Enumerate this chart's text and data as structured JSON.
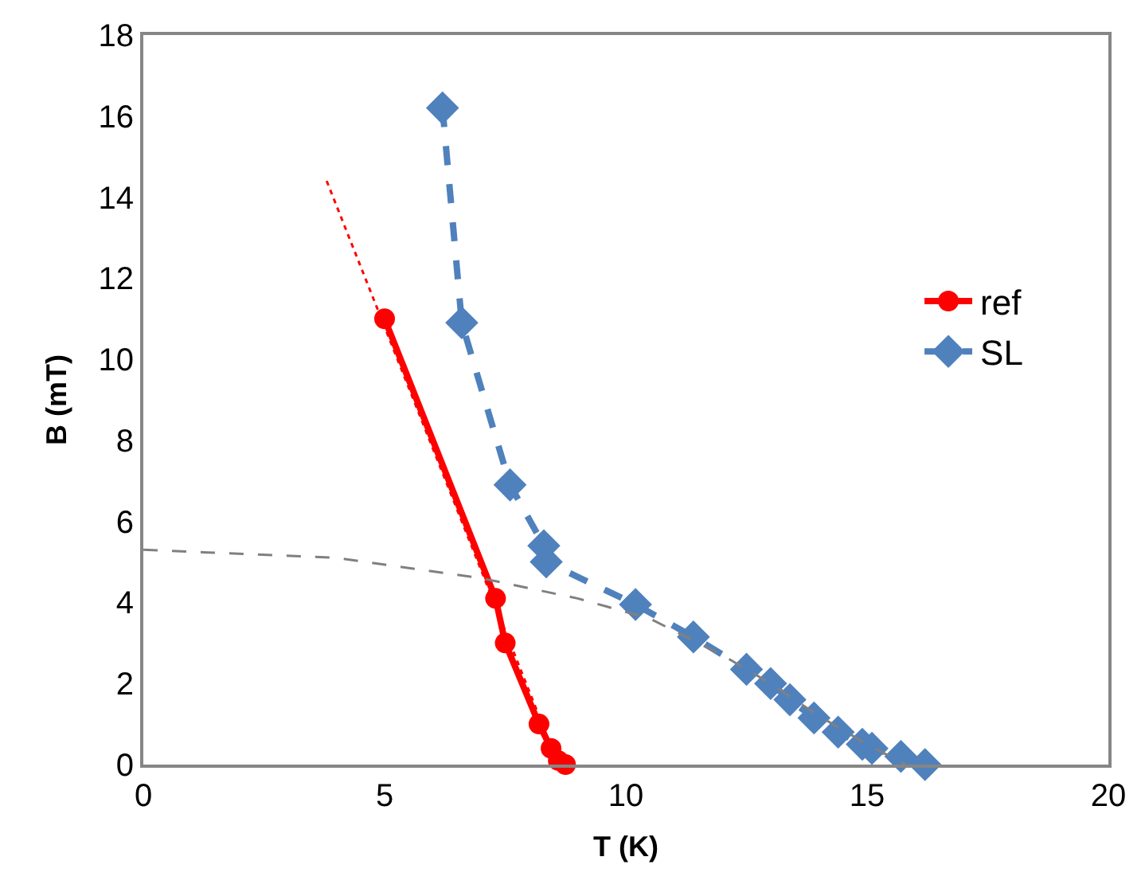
{
  "chart_data": {
    "type": "line",
    "xlabel": "T (K)",
    "ylabel": "B (mT)",
    "xlim": [
      0,
      20
    ],
    "xticks": [
      0,
      5,
      10,
      15,
      20
    ],
    "ylim": [
      0,
      18
    ],
    "yticks": [
      0,
      2,
      4,
      6,
      8,
      10,
      12,
      14,
      16,
      18
    ],
    "legend": "right",
    "series": [
      {
        "name": "ref",
        "color": "#ff0000",
        "marker": "circle",
        "line_style": "solid",
        "x": [
          5.0,
          7.3,
          7.5,
          8.2,
          8.45,
          8.6,
          8.75
        ],
        "values": [
          11.0,
          4.1,
          3.0,
          1.0,
          0.4,
          0.1,
          0.0
        ]
      },
      {
        "name": "SL",
        "color": "#4f81bd",
        "marker": "diamond",
        "line_style": "dashed",
        "x": [
          6.2,
          6.6,
          7.6,
          8.3,
          8.35,
          10.2,
          11.4,
          12.5,
          13.0,
          13.4,
          13.9,
          14.4,
          14.9,
          15.1,
          15.7,
          16.2
        ],
        "values": [
          16.2,
          10.9,
          6.9,
          5.4,
          5.0,
          3.95,
          3.15,
          2.35,
          2.0,
          1.6,
          1.15,
          0.8,
          0.5,
          0.4,
          0.2,
          0.0
        ]
      },
      {
        "color": "#ff0000",
        "marker": "none",
        "line_style": "dotted",
        "x": [
          3.8,
          8.5
        ],
        "values": [
          14.4,
          0.3
        ]
      },
      {
        "color": "#808080",
        "marker": "none",
        "line_style": "dashed",
        "x": [
          0,
          4,
          7,
          9,
          10.5,
          12,
          13,
          14,
          15,
          15.8
        ],
        "values": [
          5.3,
          5.1,
          4.6,
          4.1,
          3.6,
          2.7,
          2.0,
          1.2,
          0.5,
          0.0
        ]
      }
    ]
  }
}
